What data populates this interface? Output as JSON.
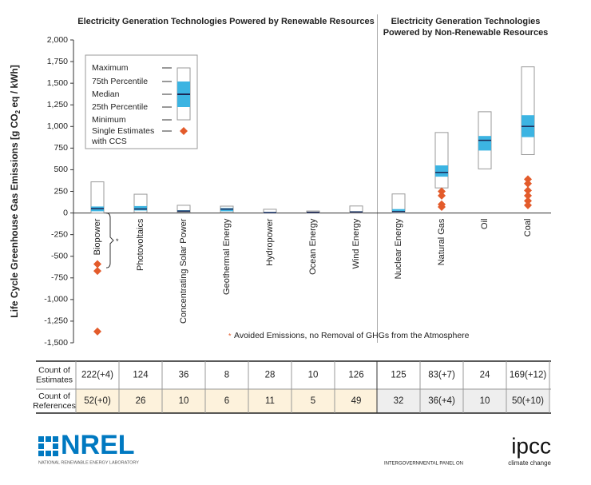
{
  "chart_data": {
    "type": "box",
    "group_titles": [
      "Electricity Generation Technologies Powered by Renewable Resources",
      [
        "Electricity Generation Technologies",
        "Powered by Non-Renewable Resources"
      ]
    ],
    "ylabel": [
      "Life Cycle Greenhouse Gas Emissions [g CO",
      "2",
      " eq / kWh]"
    ],
    "categories": [
      "Biopower",
      "Photovoltaics",
      "Concentrating Solar Power",
      "Geothermal Energy",
      "Hydropower",
      "Ocean Energy",
      "Wind Energy",
      "Nuclear Energy",
      "Natural Gas",
      "Oil",
      "Coal"
    ],
    "renewable_count": 7,
    "boxes": [
      {
        "min": 0,
        "q1": 20,
        "median": 50,
        "q3": 75,
        "max": 360
      },
      {
        "min": 5,
        "q1": 29,
        "median": 46,
        "q3": 80,
        "max": 217
      },
      {
        "min": 9,
        "q1": 14,
        "median": 22,
        "q3": 32,
        "max": 89
      },
      {
        "min": 6,
        "q1": 20,
        "median": 45,
        "q3": 57,
        "max": 79
      },
      {
        "min": 0,
        "q1": 3,
        "median": 4,
        "q3": 12,
        "max": 43
      },
      {
        "min": 2,
        "q1": 6,
        "median": 8,
        "q3": 10,
        "max": 23
      },
      {
        "min": 2,
        "q1": 8,
        "median": 12,
        "q3": 20,
        "max": 81
      },
      {
        "min": 1,
        "q1": 8,
        "median": 16,
        "q3": 45,
        "max": 220
      },
      {
        "min": 290,
        "q1": 420,
        "median": 469,
        "q3": 550,
        "max": 930
      },
      {
        "min": 510,
        "q1": 722,
        "median": 840,
        "q3": 890,
        "max": 1170
      },
      {
        "min": 675,
        "q1": 877,
        "median": 1001,
        "q3": 1130,
        "max": 1689
      }
    ],
    "ccs_estimates": [
      [
        -590,
        -670,
        -1370
      ],
      [],
      [],
      [],
      [],
      [],
      [],
      [],
      [
        250,
        200,
        100,
        70
      ],
      [],
      [
        390,
        340,
        260,
        200,
        140,
        90
      ]
    ],
    "avoided_emissions_range": [
      -633,
      0
    ],
    "avoided_marker": "*",
    "annotation": "Avoided Emissions, no Removal of GHGs from the Atmosphere",
    "ylim": [
      -1500,
      2000
    ],
    "yticks": [
      {
        "value": -1500,
        "label": "-1,500"
      },
      {
        "value": -1250,
        "label": "-1,250"
      },
      {
        "value": -1000,
        "label": "-1,000"
      },
      -750,
      -500,
      -250,
      0,
      250,
      500,
      750,
      {
        "value": 1000,
        "label": "1,000"
      },
      {
        "value": 1250,
        "label": "1,250"
      },
      {
        "value": 1500,
        "label": "1,500"
      },
      {
        "value": 1750,
        "label": "1,750"
      },
      {
        "value": 2000,
        "label": "2,000"
      }
    ],
    "grid": false,
    "colors": {
      "box": "#ffffff",
      "iqr": "#3cb4e2",
      "median": "#1c2754",
      "ccs": "#e35b2b"
    },
    "legend": {
      "position": "upper left",
      "items": [
        "Maximum",
        "75th Percentile",
        "Median",
        "25th Percentile",
        "Minimum",
        [
          "Single Estimates",
          "with CCS"
        ]
      ]
    },
    "table": {
      "rows": [
        {
          "label": [
            "Count of",
            "Estimates"
          ],
          "cells": [
            "222(+4)",
            "124",
            "36",
            "8",
            "28",
            "10",
            "126",
            "125",
            "83(+7)",
            "24",
            "169(+12)"
          ]
        },
        {
          "label": [
            "Count of",
            "References"
          ],
          "cells": [
            "52(+0)",
            "26",
            "10",
            "6",
            "11",
            "5",
            "49",
            "32",
            "36(+4)",
            "10",
            "50(+10)"
          ]
        }
      ]
    }
  },
  "logos": {
    "nrel": "NREL",
    "nrel_sub": "NATIONAL RENEWABLE ENERGY LABORATORY",
    "ipcc": "ipcc",
    "ipcc_sub": [
      "INTERGOVERNMENTAL PANEL ON",
      "climate change"
    ]
  }
}
